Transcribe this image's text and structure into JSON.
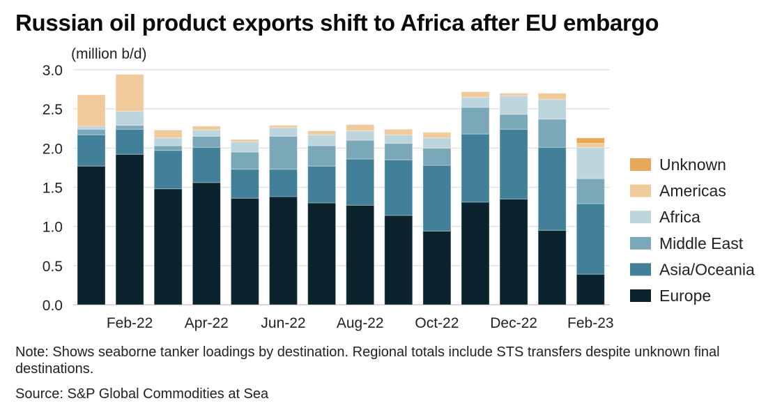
{
  "title": "Russian oil product exports shift to Africa after EU embargo",
  "note": "Note: Shows seaborne tanker loadings by destination. Regional totals include STS transfers despite unknown final destinations.",
  "source": "Source: S&P Global Commodities at Sea",
  "chart_data": {
    "type": "bar",
    "stacked": true,
    "title": "Russian oil product exports shift to Africa after EU embargo",
    "ylabel": "(million b/d)",
    "ylim": [
      0,
      3.0
    ],
    "yticks": [
      "0.0",
      "0.5",
      "1.0",
      "1.5",
      "2.0",
      "2.5",
      "3.0"
    ],
    "grid": true,
    "legend": "right",
    "categories": [
      "Jan-22",
      "Feb-22",
      "Mar-22",
      "Apr-22",
      "May-22",
      "Jun-22",
      "Jul-22",
      "Aug-22",
      "Sep-22",
      "Oct-22",
      "Nov-22",
      "Dec-22",
      "Jan-23",
      "Feb-23"
    ],
    "xtick_labels": [
      "Feb-22",
      "Apr-22",
      "Jun-22",
      "Aug-22",
      "Oct-22",
      "Dec-22",
      "Feb-23"
    ],
    "series": [
      {
        "name": "Europe",
        "color": "#0b232d",
        "values": [
          1.77,
          1.92,
          1.48,
          1.56,
          1.36,
          1.38,
          1.3,
          1.27,
          1.14,
          0.94,
          1.31,
          1.35,
          0.95,
          0.39
        ]
      },
      {
        "name": "Asia/Oceania",
        "color": "#42809a",
        "values": [
          0.4,
          0.32,
          0.49,
          0.45,
          0.37,
          0.35,
          0.47,
          0.59,
          0.71,
          0.84,
          0.87,
          0.89,
          1.06,
          0.9
        ]
      },
      {
        "name": "Middle East",
        "color": "#7ba8b8",
        "values": [
          0.07,
          0.05,
          0.06,
          0.14,
          0.22,
          0.42,
          0.26,
          0.24,
          0.21,
          0.22,
          0.34,
          0.19,
          0.36,
          0.32
        ]
      },
      {
        "name": "Africa",
        "color": "#bdd5dd",
        "values": [
          0.04,
          0.18,
          0.1,
          0.08,
          0.13,
          0.11,
          0.14,
          0.12,
          0.11,
          0.13,
          0.13,
          0.24,
          0.25,
          0.4
        ]
      },
      {
        "name": "Americas",
        "color": "#f0ca9a",
        "values": [
          0.4,
          0.47,
          0.1,
          0.05,
          0.03,
          0.03,
          0.05,
          0.08,
          0.07,
          0.07,
          0.07,
          0.03,
          0.08,
          0.05
        ]
      },
      {
        "name": "Unknown",
        "color": "#e8a85a",
        "values": [
          0,
          0,
          0,
          0,
          0,
          0,
          0,
          0,
          0,
          0,
          0,
          0,
          0,
          0.07
        ]
      }
    ]
  }
}
